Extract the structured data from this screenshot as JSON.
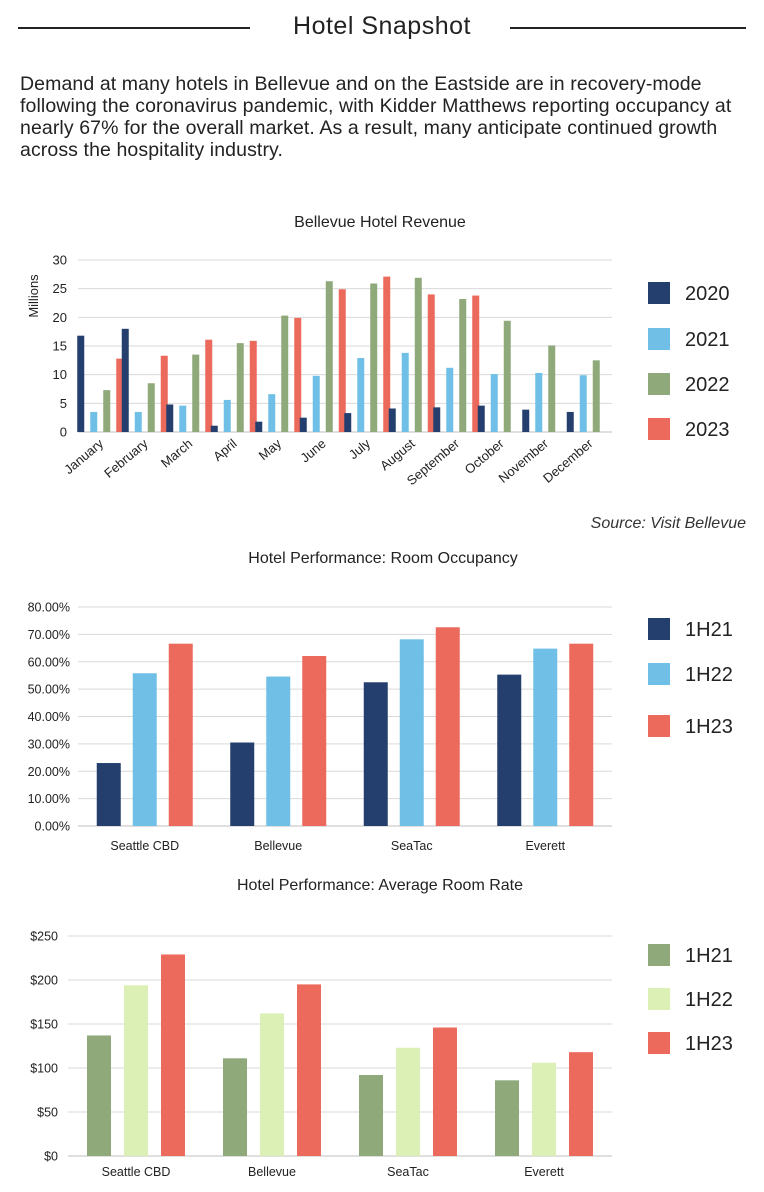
{
  "header": {
    "title": "Hotel Snapshot",
    "intro": "Demand at many hotels in Bellevue and on the Eastside are in recovery-mode following the coronavirus pandemic, with Kidder Matthews reporting occupancy at nearly 67% for the overall market. As a result, many anticipate continued growth across the hospitality industry."
  },
  "source": "Source: Visit Bellevue",
  "chart_data": [
    {
      "type": "bar",
      "title": "Bellevue Hotel Revenue",
      "ylabel": "Millions",
      "ylim": [
        0,
        30
      ],
      "yticks": [
        "0",
        "5",
        "10",
        "15",
        "20",
        "25",
        "30"
      ],
      "grid": true,
      "legend": "right",
      "categories": [
        "January",
        "February",
        "March",
        "April",
        "May",
        "June",
        "July",
        "August",
        "September",
        "October",
        "November",
        "December"
      ],
      "series": [
        {
          "name": "2020",
          "color": "#243f6e",
          "values": [
            16.8,
            18.0,
            4.8,
            1.1,
            1.8,
            2.5,
            3.3,
            4.1,
            4.3,
            4.6,
            3.9,
            3.5
          ]
        },
        {
          "name": "2021",
          "color": "#70bfe6",
          "values": [
            3.5,
            3.5,
            4.6,
            5.6,
            6.6,
            9.8,
            12.9,
            13.8,
            11.2,
            10.1,
            10.3,
            9.9
          ]
        },
        {
          "name": "2022",
          "color": "#8fa97b",
          "values": [
            7.3,
            8.5,
            13.5,
            15.5,
            20.3,
            26.3,
            25.9,
            26.9,
            23.2,
            19.4,
            15.1,
            12.5
          ]
        },
        {
          "name": "2023",
          "color": "#ec6a5c",
          "values": [
            12.8,
            13.3,
            16.1,
            15.9,
            19.9,
            24.9,
            27.1,
            24.0,
            23.8,
            null,
            null,
            null
          ]
        }
      ]
    },
    {
      "type": "bar",
      "title": "Hotel Performance: Room Occupancy",
      "ylim": [
        0,
        80
      ],
      "yticks": [
        "0.00%",
        "10.00%",
        "20.00%",
        "30.00%",
        "40.00%",
        "50.00%",
        "60.00%",
        "70.00%",
        "80.00%"
      ],
      "grid": true,
      "legend": "right",
      "categories": [
        "Seattle CBD",
        "Bellevue",
        "SeaTac",
        "Everett"
      ],
      "series": [
        {
          "name": "1H21",
          "color": "#243f6e",
          "values": [
            23.0,
            30.5,
            52.5,
            55.3
          ]
        },
        {
          "name": "1H22",
          "color": "#70bfe6",
          "values": [
            55.8,
            54.6,
            68.2,
            64.8
          ]
        },
        {
          "name": "1H23",
          "color": "#ec6a5c",
          "values": [
            66.6,
            62.1,
            72.6,
            66.6
          ]
        }
      ]
    },
    {
      "type": "bar",
      "title": "Hotel Performance: Average Room Rate",
      "ylim": [
        0,
        250
      ],
      "yticks": [
        "$0",
        "$50",
        "$100",
        "$150",
        "$200",
        "$250"
      ],
      "grid": true,
      "legend": "right",
      "categories": [
        "Seattle CBD",
        "Bellevue",
        "SeaTac",
        "Everett"
      ],
      "series": [
        {
          "name": "1H21",
          "color": "#8fa97b",
          "values": [
            137,
            111,
            92,
            86
          ]
        },
        {
          "name": "1H22",
          "color": "#dcefb4",
          "values": [
            194,
            162,
            123,
            106
          ]
        },
        {
          "name": "1H23",
          "color": "#ec6a5c",
          "values": [
            229,
            195,
            146,
            118
          ]
        }
      ]
    }
  ]
}
